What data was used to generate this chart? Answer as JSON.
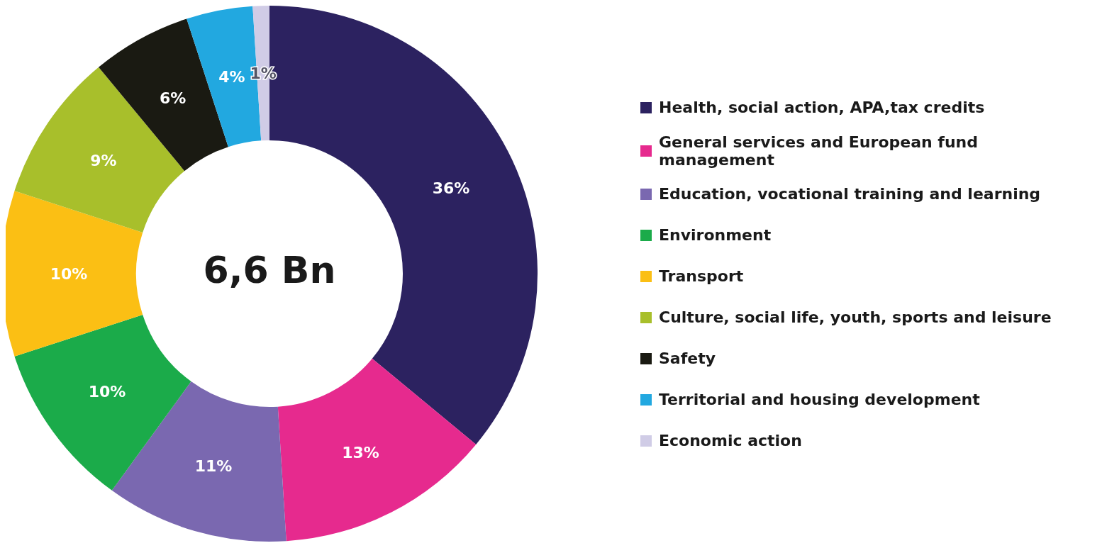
{
  "chart_data": {
    "type": "donut",
    "categories": [
      "Health, social action, APA,tax credits",
      "General services and European fund management",
      "Education, vocational training and learning",
      "Environment",
      "Transport",
      "Culture, social life, youth, sports and leisure",
      "Safety",
      "Territorial and housing development",
      "Economic action"
    ],
    "values": [
      36,
      13,
      11,
      10,
      10,
      9,
      6,
      4,
      1
    ],
    "value_labels": [
      "36%",
      "13%",
      "11%",
      "10%",
      "10%",
      "9%",
      "6%",
      "4%",
      "1%"
    ],
    "colors": [
      "#2c2260",
      "#e62a8e",
      "#7a68b0",
      "#1bab4a",
      "#fbbf14",
      "#a8bf2b",
      "#1a1a12",
      "#22a8e0",
      "#d0cce6"
    ],
    "annotations": [
      "6,6 Bn"
    ],
    "legend": "right"
  }
}
